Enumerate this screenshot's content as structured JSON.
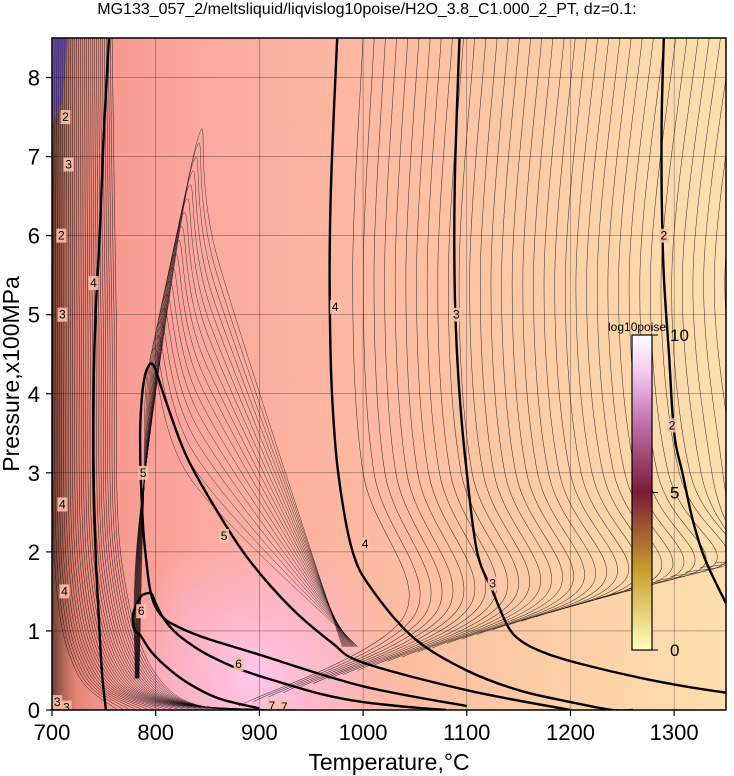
{
  "title": "MG133_057_2/meltsliquid/liqvislog10poise/H2O_3.8_C1.000_2_PT, dz=0.1:",
  "chart_data": {
    "type": "heatmap",
    "xlabel": "Temperature,°C",
    "ylabel": "Pressure,x100MPa",
    "xlim": [
      700,
      1350
    ],
    "ylim": [
      0,
      8.5
    ],
    "x_ticks": [
      700,
      800,
      900,
      1000,
      1100,
      1200,
      1300
    ],
    "y_ticks": [
      0,
      1,
      2,
      3,
      4,
      5,
      6,
      7,
      8
    ],
    "grid": true,
    "colorbar": {
      "title": "log10poise",
      "min": 0,
      "max": 10,
      "ticks": [
        0,
        5,
        10
      ],
      "colors": [
        "#ffffc0",
        "#c8a030",
        "#7a1c38",
        "#c070b0",
        "#f4c8f0",
        "#ffffff"
      ]
    },
    "contours": [
      {
        "level": 4,
        "x": [
          752,
          748,
          745,
          742,
          740,
          740,
          742,
          746,
          750,
          755
        ],
        "y": [
          0.0,
          0.5,
          1.2,
          2.0,
          3.0,
          4.0,
          5.0,
          6.0,
          7.3,
          8.5
        ]
      },
      {
        "level": 6,
        "x": [
          900,
          860,
          830,
          810,
          795,
          785,
          780,
          778,
          785,
          790,
          796,
          800,
          808,
          820,
          835,
          850,
          880,
          920,
          960,
          1000,
          1050,
          1080
        ],
        "y": [
          0.02,
          0.15,
          0.35,
          0.55,
          0.75,
          0.95,
          1.0,
          1.2,
          1.42,
          1.47,
          1.47,
          1.35,
          1.15,
          0.97,
          0.82,
          0.7,
          0.52,
          0.35,
          0.2,
          0.1,
          0.03,
          0.0
        ]
      },
      {
        "level": 5,
        "x": [
          1100,
          1000,
          900,
          830,
          800,
          790,
          786,
          785,
          787,
          790,
          793,
          796,
          800,
          810,
          830,
          860,
          890,
          930,
          970,
          1000,
          1100,
          1200
        ],
        "y": [
          0.05,
          0.3,
          0.7,
          1.0,
          1.3,
          2.0,
          2.8,
          3.5,
          4.0,
          4.25,
          4.35,
          4.38,
          4.3,
          3.9,
          3.2,
          2.5,
          1.9,
          1.3,
          0.85,
          0.6,
          0.25,
          0.0
        ]
      },
      {
        "level": 4,
        "x": [
          975,
          970,
          968,
          968,
          970,
          976,
          990,
          1010,
          1050,
          1100,
          1150,
          1200,
          1240,
          1260
        ],
        "y": [
          8.5,
          7.0,
          6.0,
          5.0,
          4.0,
          3.0,
          2.0,
          1.5,
          0.9,
          0.5,
          0.25,
          0.1,
          0.0,
          0.0
        ]
      },
      {
        "level": 3,
        "x": [
          1093,
          1089,
          1088,
          1089,
          1093,
          1100,
          1110,
          1125,
          1140,
          1155,
          1180,
          1220,
          1270,
          1310,
          1350
        ],
        "y": [
          8.5,
          7.0,
          6.0,
          5.0,
          4.0,
          3.0,
          2.0,
          1.5,
          1.05,
          0.85,
          0.7,
          0.55,
          0.4,
          0.3,
          0.22
        ]
      },
      {
        "level": 2,
        "x": [
          1290,
          1288,
          1288,
          1290,
          1295,
          1300,
          1308,
          1318,
          1330,
          1350
        ],
        "y": [
          8.5,
          7.5,
          6.5,
          5.5,
          4.5,
          3.5,
          3.0,
          2.4,
          1.9,
          1.35
        ]
      }
    ],
    "contour_labels": [
      {
        "text": "4",
        "x": 712,
        "y": 1.5
      },
      {
        "text": "4",
        "x": 710,
        "y": 2.6
      },
      {
        "text": "3",
        "x": 710,
        "y": 5.0
      },
      {
        "text": "2",
        "x": 709,
        "y": 6.0
      },
      {
        "text": "3",
        "x": 716,
        "y": 6.9
      },
      {
        "text": "2",
        "x": 713,
        "y": 7.5
      },
      {
        "text": "4",
        "x": 740,
        "y": 5.4
      },
      {
        "text": "5",
        "x": 788,
        "y": 3.0
      },
      {
        "text": "5",
        "x": 866,
        "y": 2.2
      },
      {
        "text": "6",
        "x": 786,
        "y": 1.25
      },
      {
        "text": "6",
        "x": 880,
        "y": 0.58
      },
      {
        "text": "4",
        "x": 973,
        "y": 5.1
      },
      {
        "text": "4",
        "x": 1002,
        "y": 2.1
      },
      {
        "text": "3",
        "x": 1090,
        "y": 5.0
      },
      {
        "text": "3",
        "x": 1125,
        "y": 1.6
      },
      {
        "text": "2",
        "x": 1290,
        "y": 6.0
      },
      {
        "text": "2",
        "x": 1298,
        "y": 3.6
      },
      {
        "text": "3",
        "x": 705,
        "y": 0.1
      },
      {
        "text": "3",
        "x": 714,
        "y": 0.03
      },
      {
        "text": "7",
        "x": 912,
        "y": 0.05
      },
      {
        "text": "7",
        "x": 924,
        "y": 0.04
      }
    ]
  }
}
